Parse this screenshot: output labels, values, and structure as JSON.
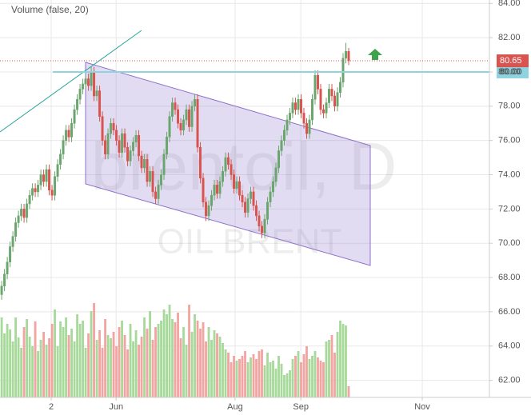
{
  "chart_data": {
    "type": "candlestick",
    "title": "Volume (false, 20)",
    "watermark": "brentoil, D",
    "watermark_subtitle": "OIL BRENT",
    "ylim": [
      61,
      84.2
    ],
    "yticks": [
      {
        "value": 62,
        "label": "62.00"
      },
      {
        "value": 64,
        "label": "64.00"
      },
      {
        "value": 66,
        "label": "66.00"
      },
      {
        "value": 68,
        "label": "68.00"
      },
      {
        "value": 70,
        "label": "70.00"
      },
      {
        "value": 72,
        "label": "72.00"
      },
      {
        "value": 74,
        "label": "74.00"
      },
      {
        "value": 76,
        "label": "76.00"
      },
      {
        "value": 78,
        "label": "78.00"
      },
      {
        "value": 80,
        "label": "80.00"
      },
      {
        "value": 82,
        "label": "82.00"
      },
      {
        "value": 84,
        "label": "84.00"
      }
    ],
    "xlim": [
      -0.6,
      174.3
    ],
    "xticks": [
      {
        "value": 17.7,
        "label": "2"
      },
      {
        "value": 40.9,
        "label": "Jun"
      },
      {
        "value": 83.4,
        "label": "Aug"
      },
      {
        "value": 106.9,
        "label": "Sep"
      },
      {
        "value": 150.3,
        "label": "Nov"
      }
    ],
    "grid": true,
    "up_color": "#6ba56e",
    "down_color": "#d9534f",
    "volume_up_color": "#a6d99a",
    "volume_down_color": "#f3a3a0",
    "level": {
      "value": 80,
      "label": "80.00",
      "color": "#8fd3e0"
    },
    "last_price": {
      "value": 80.65,
      "label": "80.65",
      "color": "#d9534f"
    },
    "open": [
      67.0,
      67.5,
      68.2,
      68.9,
      69.8,
      70.4,
      71.2,
      71.6,
      72.0,
      71.5,
      72.3,
      72.8,
      73.2,
      73.0,
      73.4,
      74.0,
      73.6,
      74.3,
      73.1,
      72.8,
      73.9,
      74.6,
      75.2,
      76.0,
      76.6,
      76.2,
      77.0,
      77.8,
      78.4,
      79.0,
      79.3,
      79.6,
      79.2,
      80.0,
      78.6,
      78.9,
      77.4,
      76.0,
      75.2,
      76.4,
      77.0,
      76.6,
      76.0,
      75.3,
      76.4,
      75.6,
      74.8,
      75.4,
      75.9,
      76.3,
      75.1,
      74.4,
      74.9,
      73.6,
      74.2,
      73.0,
      72.6,
      73.4,
      74.0,
      75.2,
      76.2,
      77.4,
      78.2,
      77.8,
      77.0,
      76.6,
      77.2,
      77.8,
      76.8,
      78.0,
      78.4,
      75.6,
      73.8,
      72.4,
      71.6,
      72.2,
      72.8,
      73.4,
      72.9,
      73.6,
      74.2,
      75.0,
      74.6,
      74.0,
      73.2,
      73.6,
      72.8,
      72.4,
      71.8,
      72.6,
      73.0,
      72.2,
      71.6,
      71.0,
      70.6,
      71.4,
      72.4,
      73.0,
      73.6,
      74.4,
      75.4,
      76.0,
      76.6,
      77.2,
      77.6,
      78.2,
      77.8,
      78.4,
      77.6,
      77.0,
      76.4,
      77.2,
      78.4,
      79.8,
      79.0,
      77.8,
      77.6,
      78.2,
      79.0,
      78.6,
      78.0,
      78.8,
      79.4,
      80.8,
      81.2
    ],
    "high": [
      67.8,
      68.5,
      69.2,
      70.1,
      70.7,
      71.5,
      71.9,
      72.3,
      72.3,
      72.6,
      73.1,
      73.5,
      73.5,
      73.7,
      74.3,
      74.3,
      74.6,
      74.6,
      73.4,
      74.2,
      74.9,
      75.5,
      76.3,
      76.9,
      76.9,
      77.3,
      78.1,
      78.7,
      79.3,
      79.6,
      79.9,
      79.9,
      80.3,
      80.3,
      79.2,
      79.2,
      77.7,
      76.3,
      76.7,
      77.3,
      77.3,
      76.9,
      76.3,
      76.7,
      76.7,
      75.9,
      75.7,
      76.2,
      76.6,
      76.6,
      75.4,
      75.2,
      75.2,
      74.5,
      74.5,
      73.3,
      73.7,
      74.3,
      75.5,
      76.5,
      77.7,
      78.5,
      78.5,
      78.1,
      77.3,
      77.5,
      78.1,
      78.1,
      78.3,
      78.7,
      78.7,
      75.9,
      74.1,
      72.7,
      72.5,
      73.1,
      73.7,
      73.7,
      73.9,
      74.5,
      75.3,
      75.3,
      74.9,
      74.3,
      73.9,
      73.9,
      73.1,
      72.7,
      72.9,
      73.3,
      73.3,
      72.5,
      71.9,
      71.3,
      71.7,
      72.7,
      73.3,
      73.9,
      74.7,
      75.7,
      76.3,
      76.9,
      77.5,
      77.9,
      78.5,
      78.5,
      78.7,
      78.7,
      77.9,
      77.3,
      77.5,
      78.7,
      80.1,
      80.1,
      79.3,
      78.1,
      78.5,
      79.3,
      79.3,
      78.9,
      79.1,
      79.7,
      81.1,
      81.7,
      81.4
    ],
    "low": [
      66.7,
      67.2,
      67.9,
      68.6,
      69.5,
      70.1,
      70.9,
      71.3,
      71.2,
      71.2,
      72.0,
      72.5,
      72.7,
      72.7,
      73.1,
      73.3,
      73.3,
      72.8,
      72.5,
      72.5,
      73.6,
      74.3,
      74.9,
      75.7,
      75.9,
      75.9,
      76.7,
      77.5,
      78.1,
      78.7,
      79.0,
      78.9,
      78.9,
      78.3,
      78.3,
      77.1,
      75.7,
      74.9,
      74.9,
      76.1,
      76.3,
      75.7,
      75.0,
      75.0,
      75.3,
      74.5,
      74.5,
      75.1,
      75.6,
      74.8,
      74.1,
      74.1,
      73.3,
      73.3,
      72.7,
      72.3,
      72.3,
      73.1,
      73.7,
      74.9,
      75.9,
      77.1,
      77.5,
      76.7,
      76.3,
      76.3,
      76.9,
      76.5,
      76.5,
      77.7,
      75.3,
      73.5,
      72.1,
      71.3,
      71.3,
      71.9,
      72.5,
      72.6,
      72.6,
      73.3,
      73.9,
      74.3,
      73.7,
      72.9,
      72.9,
      72.5,
      72.1,
      71.5,
      71.5,
      72.3,
      71.9,
      71.3,
      70.7,
      70.3,
      70.3,
      71.1,
      72.1,
      72.7,
      73.3,
      74.1,
      75.1,
      75.7,
      76.3,
      76.9,
      77.3,
      77.5,
      77.5,
      77.3,
      76.7,
      76.1,
      76.1,
      76.9,
      78.1,
      78.7,
      77.5,
      77.3,
      77.3,
      77.9,
      78.3,
      77.7,
      77.7,
      78.5,
      79.1,
      80.5,
      80.4
    ],
    "close": [
      67.5,
      68.2,
      68.9,
      69.8,
      70.4,
      71.2,
      71.6,
      72.0,
      71.5,
      72.3,
      72.8,
      73.2,
      73.0,
      73.4,
      74.0,
      73.6,
      74.3,
      73.1,
      72.8,
      73.9,
      74.6,
      75.2,
      76.0,
      76.6,
      76.2,
      77.0,
      77.8,
      78.4,
      79.0,
      79.3,
      79.6,
      79.2,
      80.0,
      78.6,
      78.9,
      77.4,
      76.0,
      75.2,
      76.4,
      77.0,
      76.6,
      76.0,
      75.3,
      76.4,
      75.6,
      74.8,
      75.4,
      75.9,
      76.3,
      75.1,
      74.4,
      74.9,
      73.6,
      74.2,
      73.0,
      72.6,
      73.4,
      74.0,
      75.2,
      76.2,
      77.4,
      78.2,
      77.8,
      77.0,
      76.6,
      77.2,
      77.8,
      76.8,
      78.0,
      78.4,
      75.6,
      73.8,
      72.4,
      71.6,
      72.2,
      72.8,
      73.4,
      72.9,
      73.6,
      74.2,
      75.0,
      74.6,
      74.0,
      73.2,
      73.6,
      72.8,
      72.4,
      71.8,
      72.6,
      73.0,
      72.2,
      71.6,
      71.0,
      70.6,
      71.4,
      72.4,
      73.0,
      73.6,
      74.4,
      75.4,
      76.0,
      76.6,
      77.2,
      77.6,
      78.2,
      77.8,
      78.4,
      77.6,
      77.0,
      76.4,
      77.2,
      78.4,
      79.8,
      79.0,
      77.8,
      77.6,
      78.2,
      79.0,
      78.6,
      78.0,
      78.8,
      79.4,
      80.8,
      81.2,
      80.65
    ],
    "volume_lim": [
      0,
      130
    ],
    "volume": [
      100,
      80,
      92,
      85,
      70,
      100,
      75,
      62,
      88,
      98,
      76,
      64,
      95,
      58,
      72,
      82,
      66,
      74,
      92,
      110,
      64,
      95,
      88,
      100,
      78,
      86,
      70,
      104,
      92,
      96,
      62,
      80,
      108,
      118,
      72,
      84,
      62,
      98,
      78,
      74,
      82,
      64,
      88,
      96,
      78,
      60,
      92,
      70,
      84,
      66,
      76,
      100,
      86,
      108,
      72,
      88,
      92,
      96,
      110,
      104,
      116,
      98,
      94,
      106,
      74,
      88,
      66,
      116,
      82,
      104,
      96,
      86,
      94,
      70,
      88,
      72,
      84,
      80,
      76,
      68,
      60,
      56,
      44,
      52,
      46,
      48,
      52,
      58,
      44,
      50,
      54,
      48,
      58,
      60,
      40,
      56,
      44,
      46,
      36,
      52,
      42,
      28,
      30,
      34,
      48,
      52,
      58,
      44,
      54,
      64,
      48,
      52,
      58,
      50,
      46,
      44,
      70,
      72,
      78,
      56,
      82,
      96,
      92,
      90,
      14
    ]
  }
}
